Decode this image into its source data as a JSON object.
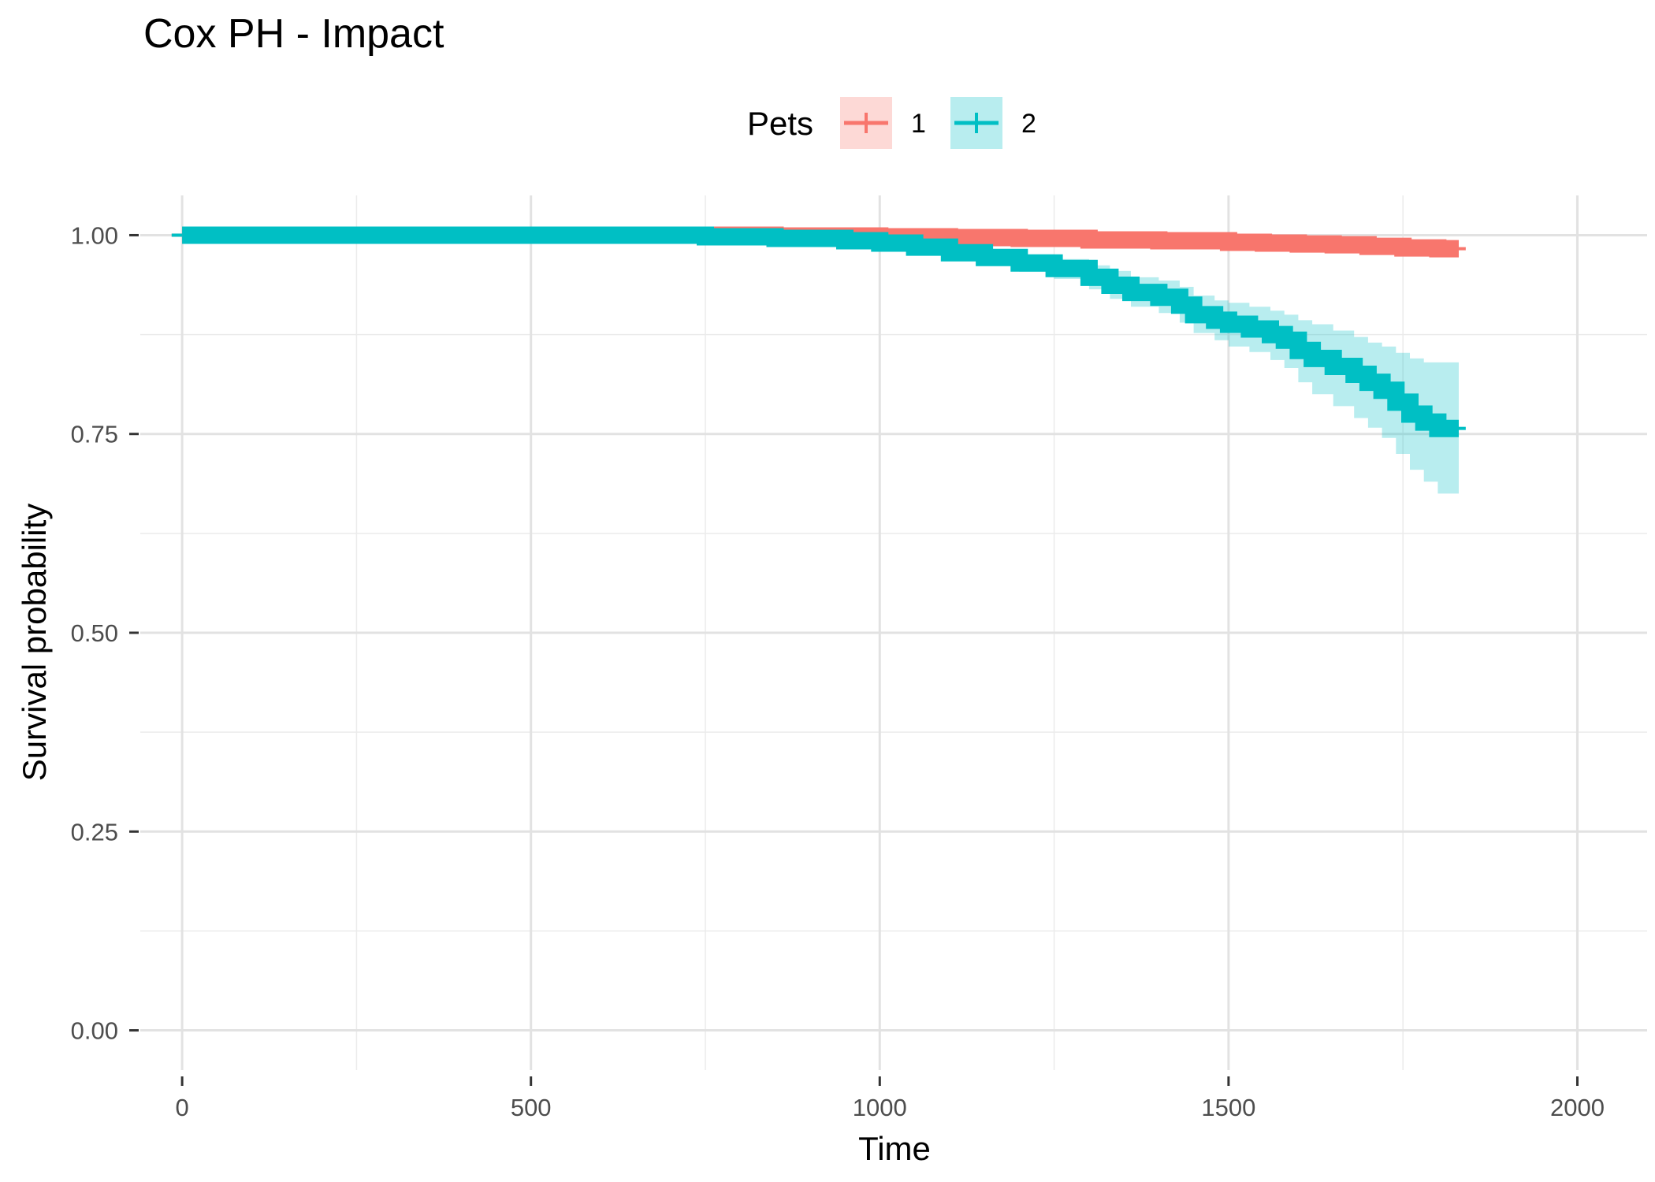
{
  "chart_data": {
    "type": "line",
    "title": "Cox PH - Impact",
    "xlabel": "Time",
    "ylabel": "Survival probability",
    "xlim": [
      -60,
      2100
    ],
    "ylim": [
      -0.05,
      1.05
    ],
    "x_ticks": [
      0,
      500,
      1000,
      1500,
      2000
    ],
    "x_tick_labels": [
      "0",
      "500",
      "1000",
      "1500",
      "2000"
    ],
    "y_ticks": [
      0,
      0.25,
      0.5,
      0.75,
      1.0
    ],
    "y_tick_labels": [
      "0.00",
      "0.25",
      "0.50",
      "0.75",
      "1.00"
    ],
    "grid": true,
    "legend": {
      "title": "Pets",
      "position": "top",
      "entries": [
        "1",
        "2"
      ]
    },
    "series": [
      {
        "name": "1",
        "color": "#F8766D",
        "fill_color": "#F8766D",
        "x": [
          0,
          700,
          850,
          1000,
          1100,
          1200,
          1300,
          1400,
          1500,
          1550,
          1600,
          1650,
          1700,
          1750,
          1800,
          1830
        ],
        "y": [
          1.0,
          1.0,
          0.999,
          0.998,
          0.997,
          0.996,
          0.994,
          0.993,
          0.991,
          0.99,
          0.989,
          0.988,
          0.986,
          0.984,
          0.983,
          0.983
        ],
        "lower": [
          1.0,
          0.999,
          0.998,
          0.996,
          0.994,
          0.992,
          0.99,
          0.988,
          0.986,
          0.985,
          0.983,
          0.981,
          0.979,
          0.977,
          0.975,
          0.975
        ],
        "upper": [
          1.0,
          1.0,
          1.0,
          1.0,
          1.0,
          0.999,
          0.998,
          0.997,
          0.996,
          0.995,
          0.995,
          0.994,
          0.993,
          0.991,
          0.99,
          0.99
        ],
        "censor_end": 1840
      },
      {
        "name": "2",
        "color": "#00BFC4",
        "fill_color": "#00BFC4",
        "x": [
          0,
          650,
          750,
          850,
          950,
          1000,
          1050,
          1100,
          1150,
          1200,
          1250,
          1300,
          1330,
          1360,
          1400,
          1430,
          1450,
          1480,
          1500,
          1530,
          1560,
          1580,
          1600,
          1620,
          1650,
          1680,
          1700,
          1720,
          1740,
          1760,
          1780,
          1800,
          1830
        ],
        "y": [
          1.0,
          1.0,
          0.998,
          0.996,
          0.993,
          0.99,
          0.985,
          0.978,
          0.972,
          0.965,
          0.958,
          0.947,
          0.937,
          0.928,
          0.922,
          0.912,
          0.9,
          0.893,
          0.888,
          0.882,
          0.875,
          0.868,
          0.855,
          0.845,
          0.835,
          0.825,
          0.815,
          0.805,
          0.79,
          0.775,
          0.765,
          0.757,
          0.757
        ],
        "lower": [
          1.0,
          0.999,
          0.996,
          0.993,
          0.988,
          0.984,
          0.978,
          0.969,
          0.962,
          0.954,
          0.945,
          0.932,
          0.92,
          0.91,
          0.902,
          0.89,
          0.877,
          0.868,
          0.86,
          0.853,
          0.843,
          0.833,
          0.815,
          0.8,
          0.785,
          0.77,
          0.758,
          0.745,
          0.725,
          0.705,
          0.69,
          0.675,
          0.672
        ],
        "upper": [
          1.0,
          1.0,
          1.0,
          0.999,
          0.997,
          0.995,
          0.991,
          0.986,
          0.981,
          0.976,
          0.97,
          0.962,
          0.955,
          0.947,
          0.943,
          0.935,
          0.924,
          0.918,
          0.915,
          0.91,
          0.905,
          0.9,
          0.893,
          0.888,
          0.88,
          0.872,
          0.865,
          0.86,
          0.852,
          0.845,
          0.84,
          0.84,
          0.84
        ],
        "censor_end": 1840
      }
    ]
  }
}
